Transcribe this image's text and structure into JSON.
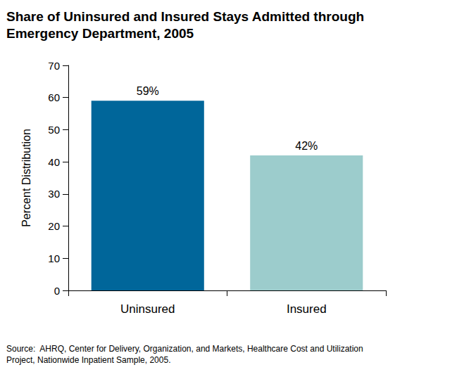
{
  "chart_data": {
    "type": "bar",
    "title": "Share of Uninsured and Insured Stays Admitted through Emergency Department, 2005",
    "y_label": "Percent Distribution",
    "categories": [
      "Uninsured",
      "Insured"
    ],
    "values": [
      59,
      42
    ],
    "value_labels": [
      "59%",
      "42%"
    ],
    "colors": [
      "#00669a",
      "#9ccccc"
    ],
    "ylim": [
      0,
      70
    ],
    "yticks": [
      0,
      10,
      20,
      30,
      40,
      50,
      60,
      70
    ],
    "grid": false,
    "data_labels": true,
    "source": "Source:  AHRQ, Center for Delivery, Organization, and Markets, Healthcare Cost and Utilization Project, Nationwide Inpatient Sample, 2005."
  }
}
